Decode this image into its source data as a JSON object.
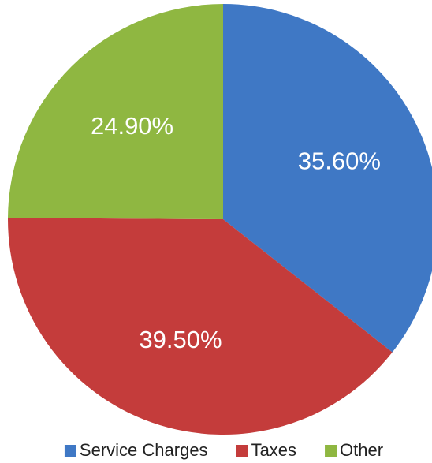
{
  "chart_data": {
    "type": "pie",
    "categories": [
      "Service Charges",
      "Taxes",
      "Other"
    ],
    "values": [
      35.6,
      39.5,
      24.9
    ],
    "value_labels": [
      "35.60%",
      "39.50%",
      "24.90%"
    ],
    "colors": [
      "#3f78c5",
      "#c43c3b",
      "#8fb741"
    ],
    "legend": "bottom"
  }
}
